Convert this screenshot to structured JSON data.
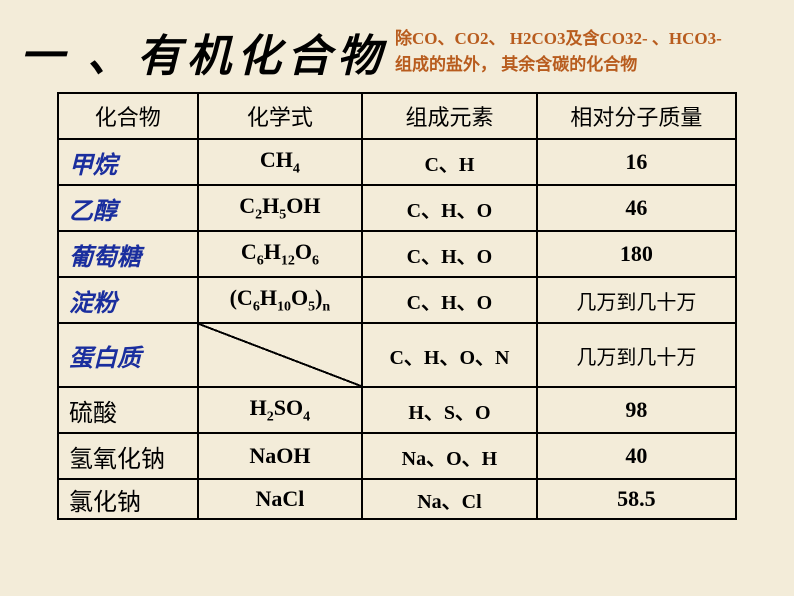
{
  "title": "一 、有机化合物",
  "subtitle": "除CO、CO2、 H2CO3及含CO32- 、HCO3- 组成的盐外， 其余含碳的化合物",
  "headers": {
    "col1": "化合物",
    "col2": "化学式",
    "col3": "组成元素",
    "col4": "相对分子质量"
  },
  "rows": [
    {
      "name": "甲烷",
      "name_color": "blue",
      "formula": "CH<sub>4</sub>",
      "elements": "C、H",
      "mass": "16",
      "mass_type": "num"
    },
    {
      "name": "乙醇",
      "name_color": "blue",
      "formula": "C<sub>2</sub>H<sub>5</sub>OH",
      "elements": "C、H、O",
      "mass": "46",
      "mass_type": "num"
    },
    {
      "name": "葡萄糖",
      "name_color": "blue",
      "formula": "C<sub>6</sub>H<sub>12</sub>O<sub>6</sub>",
      "elements": "C、H、O",
      "mass": "180",
      "mass_type": "num"
    },
    {
      "name": "淀粉",
      "name_color": "blue",
      "formula": "(C<sub>6</sub>H<sub>10</sub>O<sub>5</sub>)<sub>n</sub>",
      "elements": "C、H、O",
      "mass": "几万到几十万",
      "mass_type": "cn"
    },
    {
      "name": "蛋白质",
      "name_color": "blue",
      "formula": "",
      "elements": "C、H、O、N",
      "mass": "几万到几十万",
      "mass_type": "cn",
      "diagonal": true,
      "tall": true
    },
    {
      "name": "硫酸",
      "name_color": "black",
      "formula": "H<sub>2</sub>SO<sub>4</sub>",
      "elements": "H、S、O",
      "mass": "98",
      "mass_type": "num"
    },
    {
      "name": "氢氧化钠",
      "name_color": "black",
      "formula": "NaOH",
      "elements": "Na、O、H",
      "mass": "40",
      "mass_type": "num"
    },
    {
      "name": "氯化钠",
      "name_color": "black",
      "formula": "NaCl",
      "elements": "Na、Cl",
      "mass": "58.5",
      "mass_type": "num",
      "short": true
    }
  ]
}
